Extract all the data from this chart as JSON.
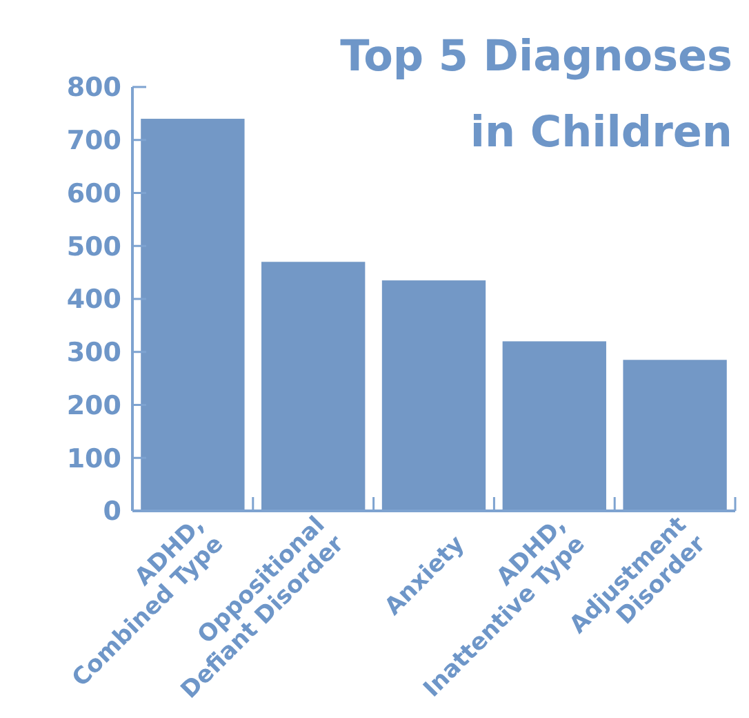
{
  "chart_data": {
    "type": "bar",
    "title": "Top 5 Diagnoses\nin Children",
    "categories": [
      "ADHD,\nCombined Type",
      "Oppositional\nDefiant Disorder",
      "Anxiety",
      "ADHD,\nInattentive Type",
      "Adjustment\nDisorder"
    ],
    "values": [
      740,
      470,
      435,
      320,
      285
    ],
    "color": "#7398c6",
    "ylim": [
      0,
      800
    ],
    "yticks": [
      0,
      100,
      200,
      300,
      400,
      500,
      600,
      700,
      800
    ],
    "grid": false
  }
}
